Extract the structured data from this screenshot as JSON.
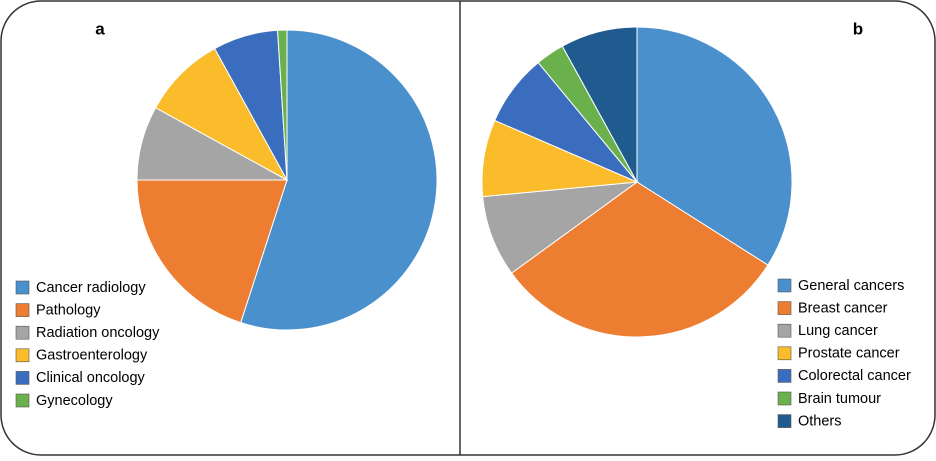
{
  "chart_data": [
    {
      "type": "pie",
      "title": "a",
      "legend": "lower left",
      "categories": [
        "Cancer radiology",
        "Pathology",
        "Radiation oncology",
        "Gastroenterology",
        "Clinical oncology",
        "Gynecology"
      ],
      "values": [
        55,
        20,
        8,
        9,
        7,
        1
      ],
      "colors": [
        "#4a90cd",
        "#ed7d31",
        "#a5a5a5",
        "#fbbc2b",
        "#3a6dbd",
        "#6ab04c"
      ]
    },
    {
      "type": "pie",
      "title": "b",
      "legend": "lower right",
      "categories": [
        "General cancers",
        "Breast cancer",
        "Lung cancer",
        "Prostate cancer",
        "Colorectal cancer",
        "Brain tumour",
        "Others"
      ],
      "values": [
        34,
        31,
        8.5,
        8,
        7.5,
        3,
        8
      ],
      "colors": [
        "#4a90cd",
        "#ed7d31",
        "#a5a5a5",
        "#fbbc2b",
        "#3a6dbd",
        "#6ab04c",
        "#1f5b8e"
      ]
    }
  ]
}
